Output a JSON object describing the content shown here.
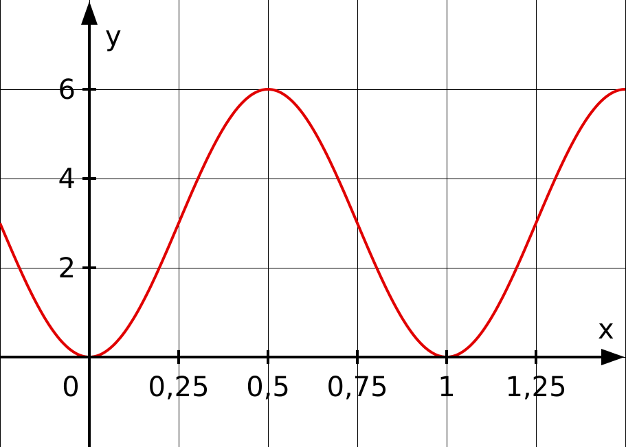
{
  "chart_data": {
    "type": "line",
    "title": "",
    "xlabel": "x",
    "ylabel": "y",
    "xlim": [
      -0.25,
      1.5
    ],
    "ylim": [
      -1,
      7
    ],
    "grid": true,
    "grid_x_step": 0.25,
    "grid_y_step": 2,
    "x_ticks": [
      {
        "value": 0.25,
        "label": "0,25"
      },
      {
        "value": 0.5,
        "label": "0,5"
      },
      {
        "value": 0.75,
        "label": "0,75"
      },
      {
        "value": 1,
        "label": "1"
      },
      {
        "value": 1.25,
        "label": "1,25"
      }
    ],
    "origin_label": "0",
    "y_ticks": [
      {
        "value": 2,
        "label": "2"
      },
      {
        "value": 4,
        "label": "4"
      },
      {
        "value": 6,
        "label": "6"
      }
    ],
    "series": [
      {
        "color": "#e00000",
        "function": "3 - 3*cos(2*pi*x)",
        "x": [
          -0.25,
          -0.125,
          0,
          0.125,
          0.25,
          0.375,
          0.5,
          0.625,
          0.75,
          0.875,
          1,
          1.125,
          1.25,
          1.375,
          1.5
        ],
        "y": [
          3,
          0.88,
          0,
          0.88,
          3,
          5.12,
          6,
          5.12,
          3,
          0.88,
          0,
          0.88,
          3,
          5.12,
          6
        ]
      }
    ]
  }
}
